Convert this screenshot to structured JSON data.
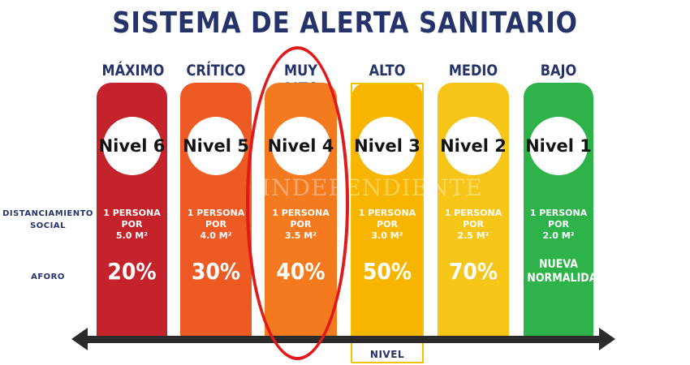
{
  "title": "SISTEMA DE ALERTA SANITARIO",
  "row_labels": {
    "distanciamiento": "DISTANCIAMIENTO\nSOCIAL",
    "aforo": "AFORO"
  },
  "levels": [
    {
      "name": "MÁXIMO",
      "badge": "Nivel 6",
      "distancing": "1 PERSONA POR\n5.0 M²",
      "capacity": "20%",
      "color": "#c4232b"
    },
    {
      "name": "CRÍTICO",
      "badge": "Nivel 5",
      "distancing": "1 PERSONA POR\n4.0 M²",
      "capacity": "30%",
      "color": "#ee5a24"
    },
    {
      "name": "MUY ALTO",
      "badge": "Nivel 4",
      "distancing": "1 PERSONA POR\n3.5 M²",
      "capacity": "40%",
      "color": "#f47a20"
    },
    {
      "name": "ALTO",
      "badge": "Nivel 3",
      "distancing": "1 PERSONA POR\n3.0 M²",
      "capacity": "50%",
      "color": "#f7b500"
    },
    {
      "name": "MEDIO",
      "badge": "Nivel 2",
      "distancing": "1 PERSONA POR\n2.5 M²",
      "capacity": "70%",
      "color": "#f5c518"
    },
    {
      "name": "BAJO",
      "badge": "Nivel 1",
      "distancing": "1 PERSONA POR\n2.0 M²",
      "capacity": "NUEVA\nNORMALIDAD",
      "color": "#2db34a"
    }
  ],
  "nivel_label": "NIVEL",
  "watermark": "INDEPENDIENTE",
  "highlighted_level": "Nivel 4"
}
